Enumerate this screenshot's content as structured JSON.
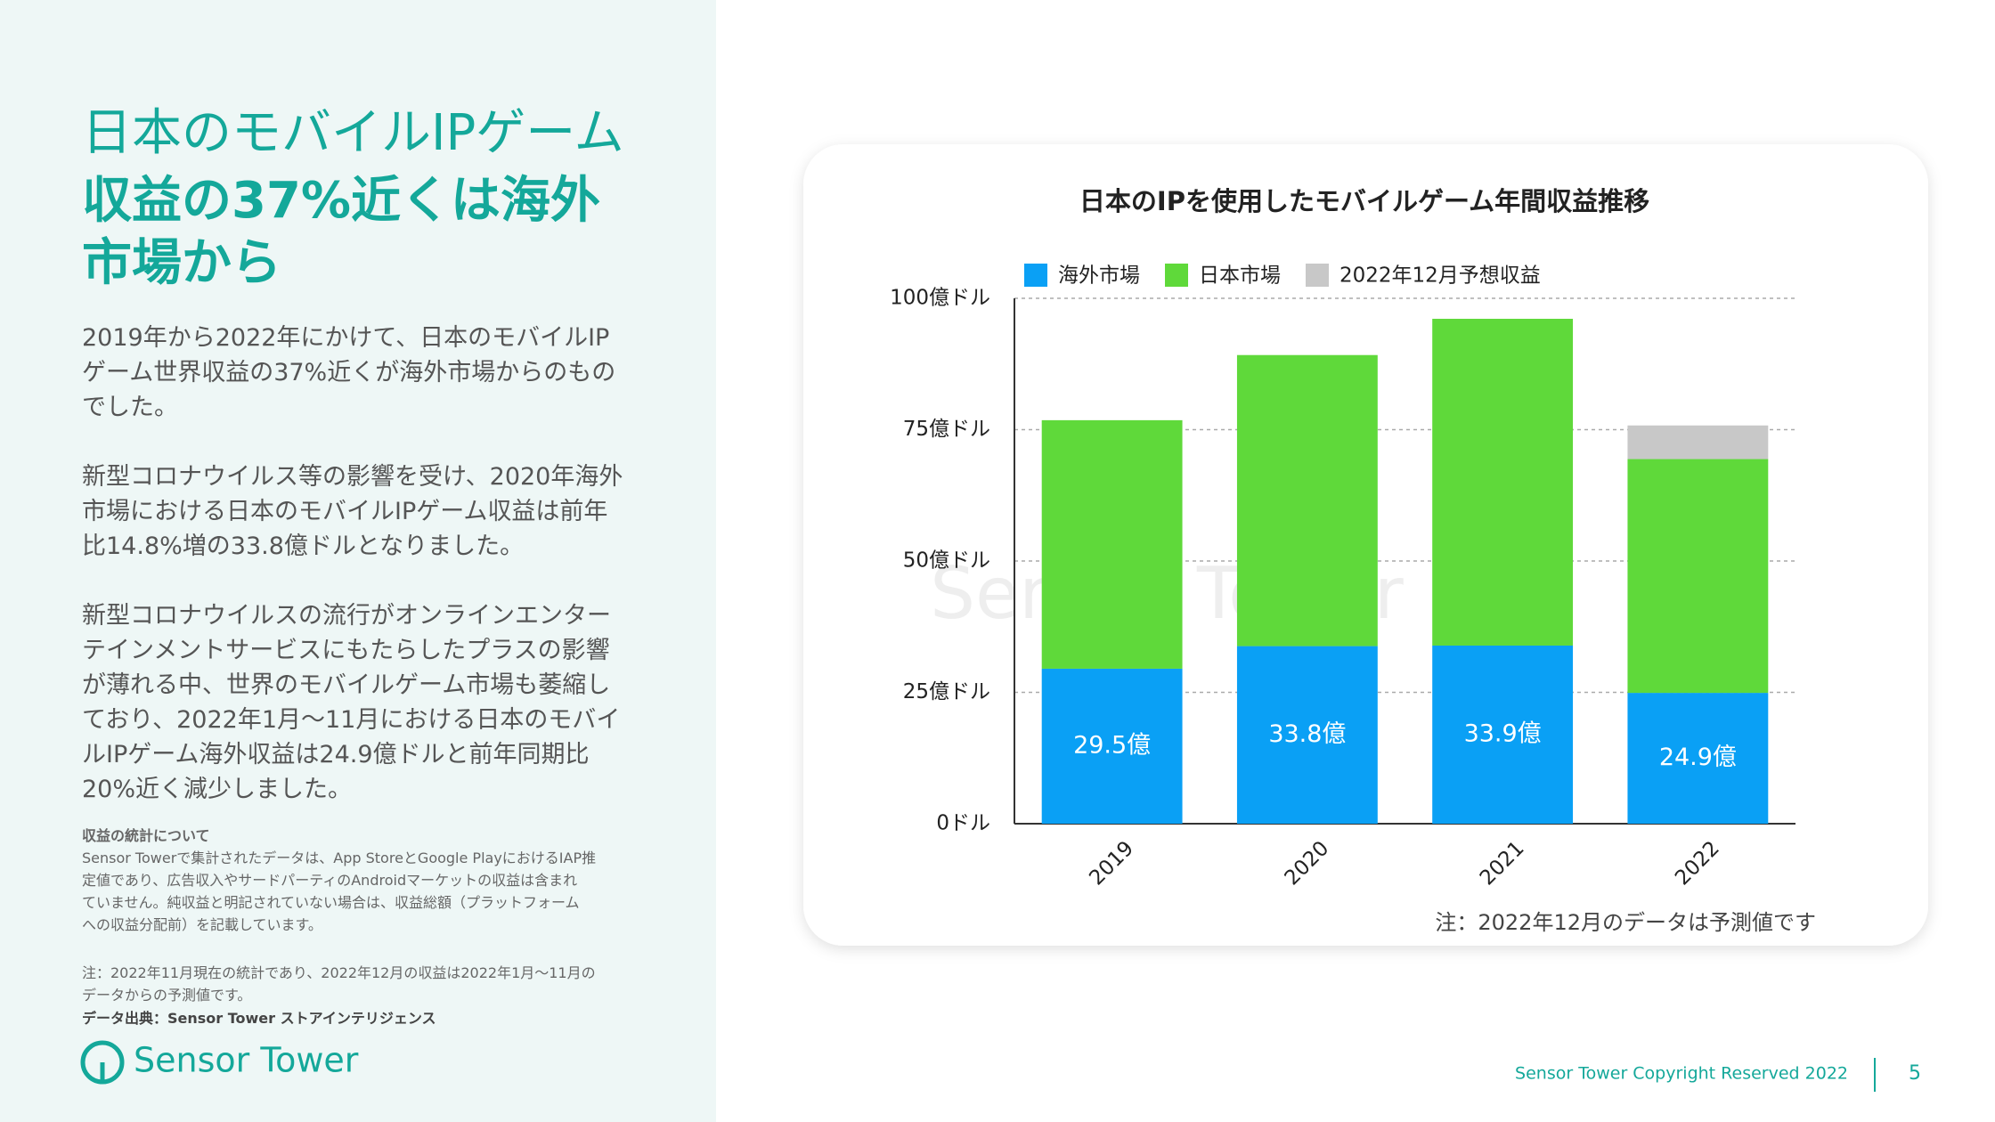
{
  "slide": {
    "title_lines": [
      "日本のモバイルIPゲーム",
      "収益の37%近くは海外",
      "市場から"
    ],
    "paragraphs": [
      [
        "2019年から2022年にかけて、日本のモバイルIP",
        "ゲーム世界収益の37%近くが海外市場からのもの",
        "でした。"
      ],
      [
        "新型コロナウイルス等の影響を受け、2020年海外",
        "市場における日本のモバイルIPゲーム収益は前年",
        "比14.8%増の33.8億ドルとなりました。"
      ],
      [
        "新型コロナウイルスの流行がオンラインエンター",
        "テインメントサービスにもたらしたプラスの影響",
        "が薄れる中、世界のモバイルゲーム市場も萎縮し",
        "ており、2022年1月〜11月における日本のモバイ",
        "ルIPゲーム海外収益は24.9億ドルと前年同期比",
        "20%近く減少しました。"
      ]
    ],
    "notes_heading": "収益の統計について",
    "notes_lines": [
      "Sensor Towerで集計されたデータは、App StoreとGoogle PlayにおけるIAP推",
      "定値であり、広告収入やサードパーティのAndroidマーケットの収益は含まれ",
      "ていません。純収益と明記されていない場合は、収益総額（プラットフォーム",
      "への収益分配前）を記載しています。"
    ],
    "note2_lines": [
      "注：2022年11月現在の統計であり、2022年12月の収益は2022年1月〜11月の",
      "データからの予測値です。"
    ],
    "source": "データ出典：Sensor Tower ストアインテリジェンス",
    "logo": "Sensor Tower",
    "copyright": "Sensor Tower Copyright Reserved 2022",
    "page_number": "5"
  },
  "chart_data": {
    "type": "stacked_bar",
    "title": "日本のIPを使用したモバイルゲーム年間収益推移",
    "categories": [
      "2019",
      "2020",
      "2021",
      "2022"
    ],
    "series": [
      {
        "name": "海外市場",
        "color": "#0aa0f5",
        "values": [
          29.5,
          33.8,
          33.9,
          24.9
        ],
        "value_labels": [
          "29.5億",
          "33.8億",
          "33.9億",
          "24.9億"
        ]
      },
      {
        "name": "日本市場",
        "color": "#5fd93a",
        "values": [
          47.3,
          55.4,
          62.2,
          44.5
        ]
      },
      {
        "name": "2022年12月予想収益",
        "color": "#c8c8c8",
        "values": [
          null,
          null,
          null,
          6.4
        ]
      }
    ],
    "ylim": [
      0,
      100
    ],
    "yticks": [
      {
        "value": 0,
        "label": "0ドル"
      },
      {
        "value": 25,
        "label": "25億ドル"
      },
      {
        "value": 50,
        "label": "50億ドル"
      },
      {
        "value": 75,
        "label": "75億ドル"
      },
      {
        "value": 100,
        "label": "100億ドル"
      }
    ],
    "grid": true,
    "note": "注：2022年12月のデータは予測値です"
  }
}
